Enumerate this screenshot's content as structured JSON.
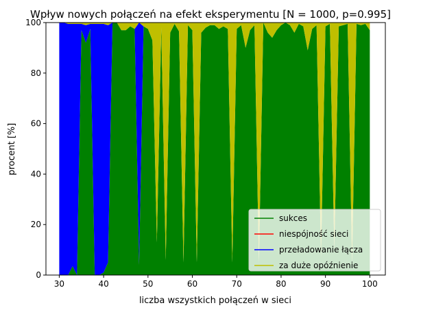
{
  "chart_data": {
    "type": "area",
    "title": "Wpływ nowych połączeń na efekt eksperymentu [N = 1000, p=0.995]",
    "xlabel": "liczba wszystkich połączeń w sieci",
    "ylabel": "procent [%]",
    "xlim": [
      27,
      103.5
    ],
    "ylim": [
      0,
      100
    ],
    "xticks": [
      30,
      40,
      50,
      60,
      70,
      80,
      90,
      100
    ],
    "yticks": [
      0,
      20,
      40,
      60,
      80,
      100
    ],
    "x": [
      30,
      31,
      32,
      33,
      34,
      35,
      36,
      37,
      38,
      39,
      40,
      41,
      42,
      43,
      44,
      45,
      46,
      47,
      48,
      49,
      50,
      51,
      52,
      53,
      54,
      55,
      56,
      57,
      58,
      59,
      60,
      61,
      62,
      63,
      64,
      65,
      66,
      67,
      68,
      69,
      70,
      71,
      72,
      73,
      74,
      75,
      76,
      77,
      78,
      79,
      80,
      81,
      82,
      83,
      84,
      85,
      86,
      87,
      88,
      89,
      90,
      91,
      92,
      93,
      94,
      95,
      96,
      97,
      98,
      99,
      100
    ],
    "series": [
      {
        "name": "sukces",
        "color": "#008000",
        "values": [
          0,
          0,
          0,
          3.5,
          0,
          97,
          92,
          97.5,
          0,
          0,
          1,
          5,
          100,
          100,
          97,
          97,
          98.5,
          97.5,
          4,
          98.5,
          97.5,
          93,
          13,
          98,
          6,
          96,
          99.5,
          96.5,
          5,
          99,
          97,
          5,
          96,
          98,
          99,
          99,
          97.5,
          98.5,
          97.5,
          5,
          97.5,
          99,
          90,
          97,
          99,
          5,
          100,
          96,
          94,
          97,
          99,
          100,
          99,
          96,
          99.5,
          98.5,
          89,
          97.5,
          99,
          7,
          98.5,
          99.5,
          10,
          98.5,
          99,
          99.5,
          5,
          99.5,
          99,
          99.5,
          97
        ]
      },
      {
        "name": "niespójność sieci",
        "color": "#ff0000",
        "values": [
          0,
          0,
          0,
          0,
          0,
          0,
          0,
          0,
          0,
          0,
          0,
          0,
          0,
          0,
          0,
          0,
          0,
          0,
          0,
          0,
          0,
          0,
          0,
          0,
          0,
          0,
          0,
          0,
          0,
          0,
          0,
          0,
          0,
          0,
          0,
          0,
          0,
          0,
          0,
          0,
          0,
          0,
          0,
          0,
          0,
          0,
          0,
          0,
          0,
          0,
          0,
          0,
          0,
          0,
          0,
          0,
          0,
          0,
          0,
          0,
          0,
          0,
          0,
          0,
          0,
          0,
          0,
          0,
          0,
          0,
          0
        ]
      },
      {
        "name": "przeładowanie łącza",
        "color": "#0000ff",
        "values": [
          100,
          100,
          99.5,
          96,
          99.5,
          2.5,
          7,
          2,
          99.5,
          99.5,
          98.5,
          94,
          0,
          0,
          0,
          0,
          0,
          0,
          96,
          0,
          0,
          0,
          0,
          0,
          0,
          0,
          0,
          0,
          0,
          0,
          0,
          0,
          0,
          0,
          0,
          0,
          0,
          0,
          0,
          0,
          0,
          0,
          0,
          0,
          0,
          0,
          0,
          0,
          0,
          0,
          0,
          0,
          0,
          0,
          0,
          0,
          0,
          0,
          0,
          0,
          0,
          0,
          0,
          0,
          0,
          0,
          0,
          0,
          0,
          0,
          0
        ]
      },
      {
        "name": "za duże opóźnienie",
        "color": "#bfbf00",
        "values": [
          0,
          0,
          0.5,
          0.5,
          0.5,
          0.5,
          1,
          0.5,
          0.5,
          0.5,
          0.5,
          1,
          0,
          0,
          3,
          3,
          1.5,
          2.5,
          0,
          1.5,
          2.5,
          7,
          87,
          2,
          94,
          4,
          0.5,
          3.5,
          95,
          1,
          3,
          95,
          4,
          2,
          1,
          1,
          2.5,
          1.5,
          2.5,
          95,
          2.5,
          1,
          10,
          3,
          1,
          95,
          0,
          4,
          6,
          3,
          1,
          0,
          1,
          4,
          0.5,
          1.5,
          11,
          2.5,
          1,
          93,
          1.5,
          0.5,
          90,
          1.5,
          1,
          0.5,
          95,
          0.5,
          1,
          0.5,
          3
        ]
      }
    ],
    "legend": {
      "position": "lower-right",
      "entries": [
        "sukces",
        "niespójność sieci",
        "przeładowanie łącza",
        "za duże opóźnienie"
      ]
    },
    "grid": false
  }
}
